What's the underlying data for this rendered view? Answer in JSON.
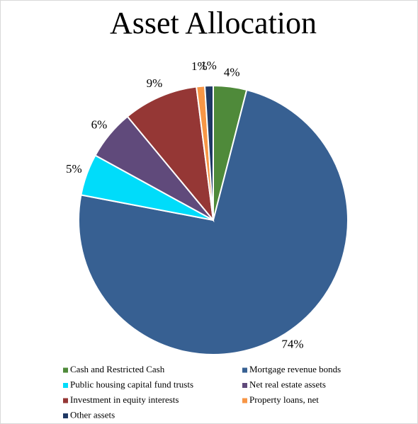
{
  "chart_data": {
    "type": "pie",
    "title": "Asset Allocation",
    "categories": [
      "Cash and Restricted Cash",
      "Mortgage revenue bonds",
      "Public housing capital fund trusts",
      "Net real estate assets",
      "Investment in equity interests",
      "Property loans, net",
      "Other assets"
    ],
    "values": [
      4,
      74,
      5,
      6,
      9,
      1,
      1
    ],
    "value_labels": [
      "4%",
      "74%",
      "5%",
      "6%",
      "9%",
      "1%",
      "1%"
    ],
    "colors": [
      "#4f8a3a",
      "#376092",
      "#00dcfa",
      "#604a7b",
      "#953735",
      "#f79646",
      "#1f3864"
    ]
  }
}
